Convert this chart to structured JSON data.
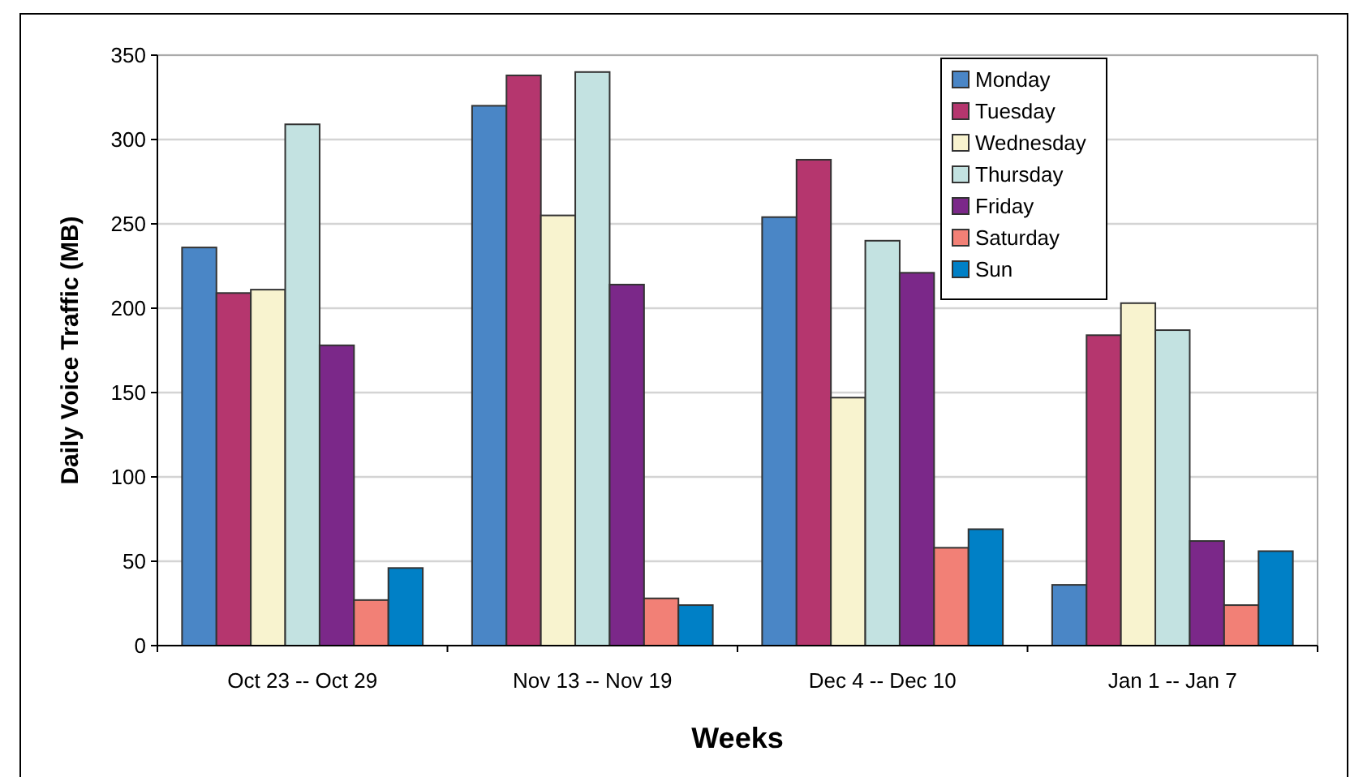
{
  "chart_data": {
    "type": "bar",
    "xlabel": "Weeks",
    "ylabel": "Daily Voice Traffic (MB)",
    "categories": [
      "Oct 23 -- Oct 29",
      "Nov 13 -- Nov 19",
      "Dec 4 -- Dec 10",
      "Jan 1 -- Jan 7"
    ],
    "series": [
      {
        "name": "Monday",
        "color": "#4a86c6",
        "values": [
          236,
          320,
          254,
          36
        ]
      },
      {
        "name": "Tuesday",
        "color": "#b5366e",
        "values": [
          209,
          338,
          288,
          184
        ]
      },
      {
        "name": "Wednesday",
        "color": "#f8f3cf",
        "values": [
          211,
          255,
          147,
          203
        ]
      },
      {
        "name": "Thursday",
        "color": "#c3e2e1",
        "values": [
          309,
          340,
          240,
          187
        ]
      },
      {
        "name": "Friday",
        "color": "#7b2889",
        "values": [
          178,
          214,
          221,
          62
        ]
      },
      {
        "name": "Saturday",
        "color": "#f28076",
        "values": [
          27,
          28,
          58,
          24
        ]
      },
      {
        "name": "Sun",
        "color": "#0080c6",
        "values": [
          46,
          24,
          69,
          56
        ]
      }
    ],
    "ylim": [
      0,
      350
    ],
    "yticks": [
      0,
      50,
      100,
      150,
      200,
      250,
      300,
      350
    ],
    "grid": "y",
    "legend": "top right"
  }
}
